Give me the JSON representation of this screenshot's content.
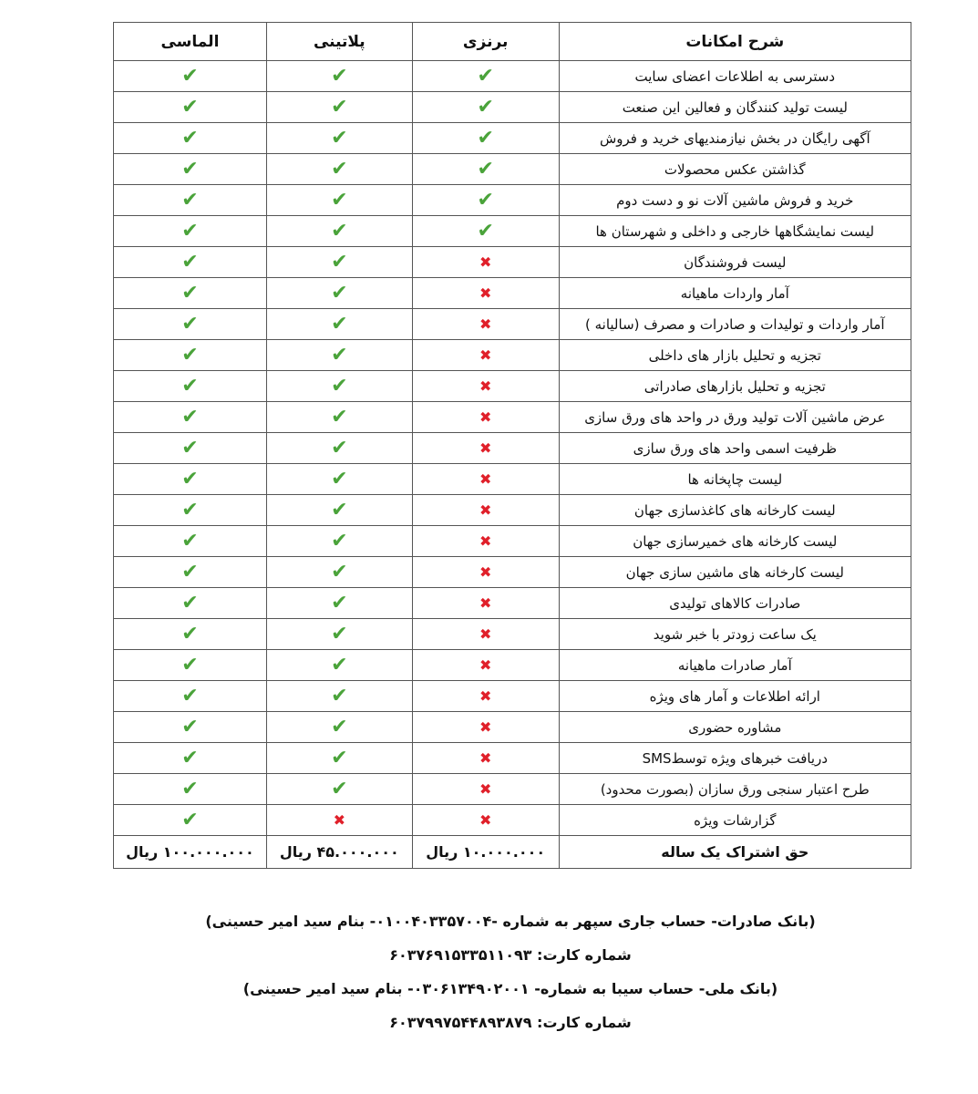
{
  "headers": [
    "شرح امکانات",
    "برنزی",
    "پلاتینی",
    "الماسی"
  ],
  "colors": {
    "check": "#4aa33a",
    "cross": "#e0202a"
  },
  "rows": [
    {
      "feature": "دسترسی به اطلاعات اعضای سایت",
      "bronze": true,
      "platinum": true,
      "diamond": true
    },
    {
      "feature": "لیست تولید کنندگان و فعالین این صنعت",
      "bronze": true,
      "platinum": true,
      "diamond": true
    },
    {
      "feature": "آگهی رایگان در بخش نیازمندیهای خرید و فروش",
      "bronze": true,
      "platinum": true,
      "diamond": true
    },
    {
      "feature": "گذاشتن عکس محصولات",
      "bronze": true,
      "platinum": true,
      "diamond": true
    },
    {
      "feature": "خرید و فروش ماشین آلات نو و دست دوم",
      "bronze": true,
      "platinum": true,
      "diamond": true
    },
    {
      "feature": "لیست نمایشگاهها خارجی و داخلی و شهرستان ها",
      "bronze": true,
      "platinum": true,
      "diamond": true
    },
    {
      "feature": "لیست فروشندگان",
      "bronze": false,
      "platinum": true,
      "diamond": true
    },
    {
      "feature": "آمار واردات ماهیانه",
      "bronze": false,
      "platinum": true,
      "diamond": true
    },
    {
      "feature": "آمار واردات و تولیدات و صادرات و مصرف (سالیانه )",
      "bronze": false,
      "platinum": true,
      "diamond": true
    },
    {
      "feature": "تجزیه و تحلیل بازار های داخلی",
      "bronze": false,
      "platinum": true,
      "diamond": true
    },
    {
      "feature": "تجزیه و تحلیل بازارهای صادراتی",
      "bronze": false,
      "platinum": true,
      "diamond": true
    },
    {
      "feature": "عرض ماشین آلات تولید ورق در واحد های ورق سازی",
      "bronze": false,
      "platinum": true,
      "diamond": true
    },
    {
      "feature": "ظرفیت اسمی واحد های ورق سازی",
      "bronze": false,
      "platinum": true,
      "diamond": true
    },
    {
      "feature": "لیست چاپخانه ها",
      "bronze": false,
      "platinum": true,
      "diamond": true
    },
    {
      "feature": "لیست کارخانه های کاغذسازی جهان",
      "bronze": false,
      "platinum": true,
      "diamond": true
    },
    {
      "feature": "لیست کارخانه های خمیرسازی جهان",
      "bronze": false,
      "platinum": true,
      "diamond": true
    },
    {
      "feature": "لیست کارخانه های ماشین سازی جهان",
      "bronze": false,
      "platinum": true,
      "diamond": true
    },
    {
      "feature": "صادرات کالاهای تولیدی",
      "bronze": false,
      "platinum": true,
      "diamond": true
    },
    {
      "feature": "یک ساعت زودتر با خبر شوید",
      "bronze": false,
      "platinum": true,
      "diamond": true
    },
    {
      "feature": "آمار صادرات ماهیانه",
      "bronze": false,
      "platinum": true,
      "diamond": true
    },
    {
      "feature": "ارائه اطلاعات و آمار های ویژه",
      "bronze": false,
      "platinum": true,
      "diamond": true
    },
    {
      "feature": "مشاوره حضوری",
      "bronze": false,
      "platinum": true,
      "diamond": true
    },
    {
      "feature": "دریافت خبرهای ویژه  توسطSMS",
      "bronze": false,
      "platinum": true,
      "diamond": true
    },
    {
      "feature": "طرح اعتبار سنجی ورق سازان (بصورت محدود)",
      "bronze": false,
      "platinum": true,
      "diamond": true
    },
    {
      "feature": "گزارشات ویژه",
      "bronze": false,
      "platinum": false,
      "diamond": true
    }
  ],
  "price": {
    "label": "حق اشتراک یک ساله",
    "bronze": "۱۰.۰۰۰.۰۰۰ ریال",
    "platinum": "۴۵.۰۰۰.۰۰۰ ریال",
    "diamond": "۱۰۰.۰۰۰.۰۰۰ ریال"
  },
  "footer": [
    "(بانک صادرات- حساب جاری سپهر به شماره -۰۱۰۰۴۰۳۳۵۷۰۰۴- بنام سید امیر حسینی)",
    "شماره کارت:  ۶۰۳۷۶۹۱۵۳۳۵۱۱۰۹۳",
    "(بانک ملی- حساب سیبا به شماره- ۰۳۰۶۱۳۴۹۰۲۰۰۱- بنام سید امیر حسینی)",
    "شماره کارت: ۶۰۳۷۹۹۷۵۴۴۸۹۳۸۷۹"
  ]
}
